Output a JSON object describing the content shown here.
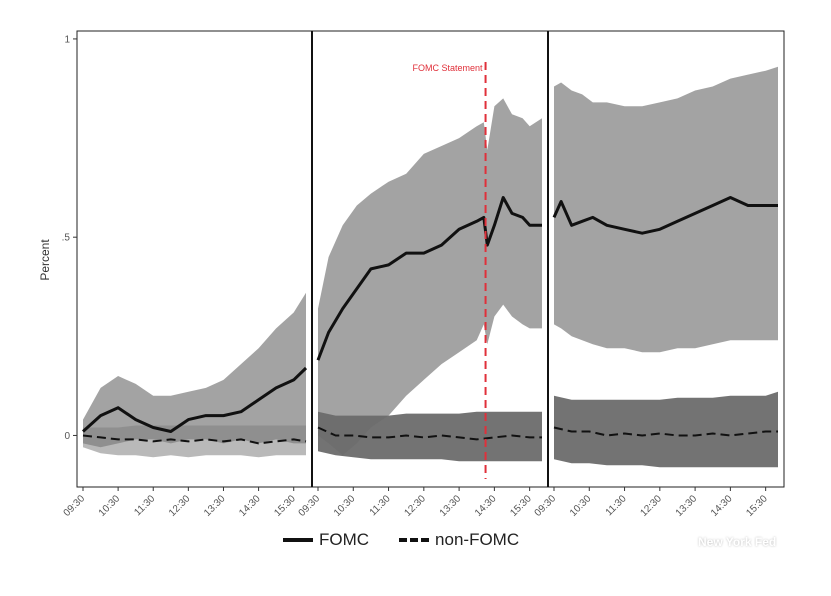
{
  "chart_data": {
    "type": "line",
    "ylabel": "Percent",
    "y_ticks": [
      0,
      0.5,
      1
    ],
    "y_tick_labels": [
      "0",
      ".5",
      "1"
    ],
    "ylim": [
      -0.13,
      1.02
    ],
    "x_tick_labels": [
      "09:30",
      "10:30",
      "11:30",
      "12:30",
      "13:30",
      "14:30",
      "15:30"
    ],
    "annotation": "FOMC Statement",
    "annotation_x": "14:15",
    "panels": [
      {
        "series": [
          {
            "name": "FOMC",
            "x": [
              9.5,
              10.0,
              10.5,
              11.0,
              11.5,
              12.0,
              12.5,
              13.0,
              13.5,
              14.0,
              14.5,
              15.0,
              15.5,
              15.85
            ],
            "values": [
              0.01,
              0.05,
              0.07,
              0.04,
              0.02,
              0.01,
              0.04,
              0.05,
              0.05,
              0.06,
              0.09,
              0.12,
              0.14,
              0.17
            ],
            "lower": [
              -0.02,
              -0.03,
              -0.02,
              -0.01,
              -0.01,
              -0.02,
              -0.01,
              -0.01,
              -0.02,
              -0.01,
              -0.02,
              -0.01,
              -0.02,
              -0.02
            ],
            "upper": [
              0.04,
              0.12,
              0.15,
              0.13,
              0.1,
              0.1,
              0.11,
              0.12,
              0.14,
              0.18,
              0.22,
              0.27,
              0.31,
              0.36
            ]
          },
          {
            "name": "non-FOMC",
            "x": [
              9.5,
              10.0,
              10.5,
              11.0,
              11.5,
              12.0,
              12.5,
              13.0,
              13.5,
              14.0,
              14.5,
              15.0,
              15.5,
              15.85
            ],
            "values": [
              0.0,
              -0.005,
              -0.01,
              -0.01,
              -0.015,
              -0.01,
              -0.015,
              -0.01,
              -0.015,
              -0.01,
              -0.02,
              -0.015,
              -0.01,
              -0.015
            ],
            "lower": [
              -0.03,
              -0.045,
              -0.05,
              -0.05,
              -0.055,
              -0.05,
              -0.055,
              -0.05,
              -0.05,
              -0.05,
              -0.055,
              -0.05,
              -0.05,
              -0.05
            ],
            "upper": [
              0.02,
              0.02,
              0.02,
              0.025,
              0.025,
              0.025,
              0.025,
              0.025,
              0.025,
              0.025,
              0.025,
              0.025,
              0.025,
              0.025
            ]
          }
        ]
      },
      {
        "series": [
          {
            "name": "FOMC",
            "x": [
              9.5,
              9.8,
              10.2,
              10.6,
              11.0,
              11.5,
              12.0,
              12.5,
              13.0,
              13.5,
              14.0,
              14.2,
              14.3,
              14.5,
              14.75,
              15.0,
              15.3,
              15.5,
              15.85
            ],
            "values": [
              0.19,
              0.26,
              0.32,
              0.37,
              0.42,
              0.43,
              0.46,
              0.46,
              0.48,
              0.52,
              0.54,
              0.55,
              0.48,
              0.53,
              0.6,
              0.56,
              0.55,
              0.53,
              0.53
            ],
            "lower": [
              0.0,
              -0.02,
              -0.05,
              -0.02,
              0.02,
              0.05,
              0.1,
              0.14,
              0.18,
              0.21,
              0.24,
              0.28,
              0.23,
              0.3,
              0.33,
              0.3,
              0.28,
              0.27,
              0.27
            ],
            "upper": [
              0.32,
              0.45,
              0.53,
              0.58,
              0.61,
              0.64,
              0.66,
              0.71,
              0.73,
              0.75,
              0.78,
              0.79,
              0.72,
              0.83,
              0.85,
              0.81,
              0.8,
              0.78,
              0.8
            ]
          },
          {
            "name": "non-FOMC",
            "x": [
              9.5,
              10.0,
              10.5,
              11.0,
              11.5,
              12.0,
              12.5,
              13.0,
              13.5,
              14.0,
              14.5,
              15.0,
              15.5,
              15.85
            ],
            "values": [
              0.02,
              0.0,
              0.0,
              -0.005,
              -0.005,
              0.0,
              -0.005,
              0.0,
              -0.005,
              -0.01,
              -0.005,
              0.0,
              -0.005,
              -0.005
            ],
            "lower": [
              -0.04,
              -0.05,
              -0.055,
              -0.06,
              -0.06,
              -0.06,
              -0.06,
              -0.06,
              -0.065,
              -0.065,
              -0.065,
              -0.065,
              -0.065,
              -0.065
            ],
            "upper": [
              0.06,
              0.05,
              0.05,
              0.05,
              0.05,
              0.055,
              0.055,
              0.055,
              0.055,
              0.06,
              0.06,
              0.06,
              0.06,
              0.06
            ]
          }
        ]
      },
      {
        "series": [
          {
            "name": "FOMC",
            "x": [
              9.5,
              9.7,
              10.0,
              10.3,
              10.6,
              11.0,
              11.5,
              12.0,
              12.5,
              13.0,
              13.5,
              14.0,
              14.5,
              15.0,
              15.5,
              15.85
            ],
            "values": [
              0.55,
              0.59,
              0.53,
              0.54,
              0.55,
              0.53,
              0.52,
              0.51,
              0.52,
              0.54,
              0.56,
              0.58,
              0.6,
              0.58,
              0.58,
              0.58
            ],
            "lower": [
              0.28,
              0.27,
              0.25,
              0.24,
              0.23,
              0.22,
              0.22,
              0.21,
              0.21,
              0.22,
              0.22,
              0.23,
              0.24,
              0.24,
              0.24,
              0.24
            ],
            "upper": [
              0.88,
              0.89,
              0.87,
              0.86,
              0.84,
              0.84,
              0.83,
              0.83,
              0.84,
              0.85,
              0.87,
              0.88,
              0.9,
              0.91,
              0.92,
              0.93
            ]
          },
          {
            "name": "non-FOMC",
            "x": [
              9.5,
              10.0,
              10.5,
              11.0,
              11.5,
              12.0,
              12.5,
              13.0,
              13.5,
              14.0,
              14.5,
              15.0,
              15.5,
              15.85
            ],
            "values": [
              0.02,
              0.01,
              0.01,
              0.0,
              0.005,
              0.0,
              0.005,
              0.0,
              0.0,
              0.005,
              0.0,
              0.005,
              0.01,
              0.01
            ],
            "lower": [
              -0.06,
              -0.07,
              -0.07,
              -0.075,
              -0.075,
              -0.075,
              -0.08,
              -0.08,
              -0.08,
              -0.08,
              -0.08,
              -0.08,
              -0.08,
              -0.08
            ],
            "upper": [
              0.1,
              0.09,
              0.09,
              0.09,
              0.09,
              0.09,
              0.09,
              0.095,
              0.095,
              0.095,
              0.1,
              0.1,
              0.1,
              0.11
            ]
          }
        ]
      }
    ],
    "colors": {
      "fomc_band": "#999999",
      "nonfomc_band_panel1": "#7f7f7f",
      "nonfomc_band_panels23": "#6b6b6b",
      "line": "#111111",
      "annotation": "#e0303a"
    }
  },
  "legend": {
    "fomc_label": "FOMC",
    "nonfomc_label": "non-FOMC"
  },
  "watermark": "New York Fed"
}
